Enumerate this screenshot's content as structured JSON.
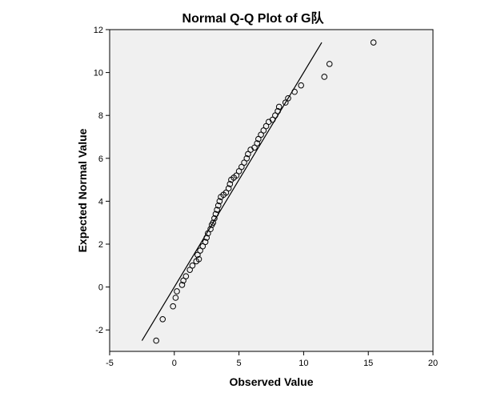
{
  "chart_data": {
    "type": "scatter",
    "title": "Normal Q-Q Plot of G队",
    "xlabel": "Observed Value",
    "ylabel": "Expected Normal Value",
    "xlim": [
      -5,
      20
    ],
    "ylim": [
      -3,
      12
    ],
    "xticks": [
      -5,
      0,
      5,
      10,
      15,
      20
    ],
    "yticks": [
      -2,
      0,
      2,
      4,
      6,
      8,
      10,
      12
    ],
    "grid": false,
    "colors": {
      "background": "#f0f0f0",
      "points": "#000000",
      "line": "#000000"
    },
    "reference_line": {
      "from": [
        -2.5,
        -2.5
      ],
      "to": [
        11.4,
        11.4
      ]
    },
    "points": [
      [
        -1.4,
        -2.5
      ],
      [
        -0.9,
        -1.5
      ],
      [
        -0.1,
        -0.9
      ],
      [
        0.1,
        -0.5
      ],
      [
        0.2,
        -0.2
      ],
      [
        0.6,
        0.1
      ],
      [
        0.7,
        0.3
      ],
      [
        0.9,
        0.5
      ],
      [
        1.2,
        0.8
      ],
      [
        1.4,
        1.0
      ],
      [
        1.7,
        1.2
      ],
      [
        1.9,
        1.3
      ],
      [
        1.8,
        1.5
      ],
      [
        2.0,
        1.7
      ],
      [
        2.2,
        1.9
      ],
      [
        2.4,
        2.1
      ],
      [
        2.5,
        2.3
      ],
      [
        2.6,
        2.5
      ],
      [
        2.8,
        2.7
      ],
      [
        2.9,
        2.9
      ],
      [
        3.0,
        3.0
      ],
      [
        3.1,
        3.2
      ],
      [
        3.2,
        3.4
      ],
      [
        3.3,
        3.6
      ],
      [
        3.4,
        3.8
      ],
      [
        3.5,
        4.0
      ],
      [
        3.6,
        4.2
      ],
      [
        3.8,
        4.3
      ],
      [
        4.0,
        4.4
      ],
      [
        4.2,
        4.6
      ],
      [
        4.3,
        4.8
      ],
      [
        4.4,
        5.0
      ],
      [
        4.6,
        5.1
      ],
      [
        4.8,
        5.2
      ],
      [
        5.0,
        5.4
      ],
      [
        5.2,
        5.6
      ],
      [
        5.4,
        5.8
      ],
      [
        5.6,
        6.0
      ],
      [
        5.7,
        6.2
      ],
      [
        5.9,
        6.4
      ],
      [
        6.2,
        6.5
      ],
      [
        6.4,
        6.7
      ],
      [
        6.5,
        6.9
      ],
      [
        6.7,
        7.1
      ],
      [
        6.9,
        7.3
      ],
      [
        7.1,
        7.5
      ],
      [
        7.3,
        7.7
      ],
      [
        7.6,
        7.8
      ],
      [
        7.8,
        8.0
      ],
      [
        8.0,
        8.2
      ],
      [
        8.1,
        8.4
      ],
      [
        8.6,
        8.6
      ],
      [
        8.8,
        8.8
      ],
      [
        9.3,
        9.1
      ],
      [
        9.8,
        9.4
      ],
      [
        11.6,
        9.8
      ],
      [
        12.0,
        10.4
      ],
      [
        15.4,
        11.4
      ]
    ]
  }
}
